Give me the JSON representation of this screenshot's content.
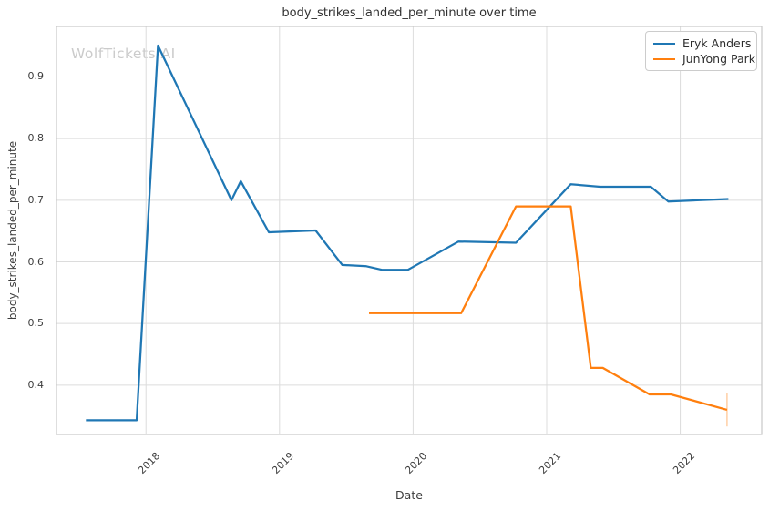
{
  "watermark": "WolfTickets AI",
  "colors": {
    "series_blue": "#1f77b4",
    "series_orange": "#ff7f0e",
    "grid": "#dcdcdc",
    "spine": "#c8c8c8",
    "text": "#3d3d3d",
    "watermark": "#cbcbcb"
  },
  "chart_data": {
    "type": "line",
    "title": "body_strikes_landed_per_minute over time",
    "xlabel": "Date",
    "ylabel": "body_strikes_landed_per_minute",
    "grid": true,
    "legend_position": "upper right",
    "xlim": [
      2017.33,
      2022.61
    ],
    "ylim": [
      0.32,
      0.982
    ],
    "xticks": {
      "values": [
        2018,
        2019,
        2020,
        2021,
        2022
      ],
      "labels": [
        "2018",
        "2019",
        "2020",
        "2021",
        "2022"
      ]
    },
    "yticks": {
      "values": [
        0.4,
        0.5,
        0.6,
        0.7,
        0.8,
        0.9
      ],
      "labels": [
        "0.4",
        "0.5",
        "0.6",
        "0.7",
        "0.8",
        "0.9"
      ]
    },
    "series": [
      {
        "name": "Eryk Anders",
        "color": "#1f77b4",
        "x": [
          2017.55,
          2017.93,
          2018.09,
          2018.64,
          2018.71,
          2018.92,
          2019.27,
          2019.47,
          2019.65,
          2019.77,
          2019.96,
          2020.34,
          2020.77,
          2021.18,
          2021.4,
          2021.78,
          2021.91,
          2022.36
        ],
        "y": [
          0.343,
          0.343,
          0.951,
          0.7,
          0.731,
          0.648,
          0.651,
          0.595,
          0.593,
          0.587,
          0.587,
          0.633,
          0.631,
          0.726,
          0.722,
          0.722,
          0.698,
          0.702
        ]
      },
      {
        "name": "JunYong Park",
        "color": "#ff7f0e",
        "x": [
          2019.67,
          2020.36,
          2020.77,
          2021.18,
          2021.33,
          2021.42,
          2021.77,
          2021.93,
          2022.35
        ],
        "y": [
          0.517,
          0.517,
          0.69,
          0.69,
          0.428,
          0.428,
          0.385,
          0.385,
          0.36
        ],
        "error_bar_last": {
          "x": 2022.35,
          "low": 0.333,
          "high": 0.387
        }
      }
    ]
  }
}
